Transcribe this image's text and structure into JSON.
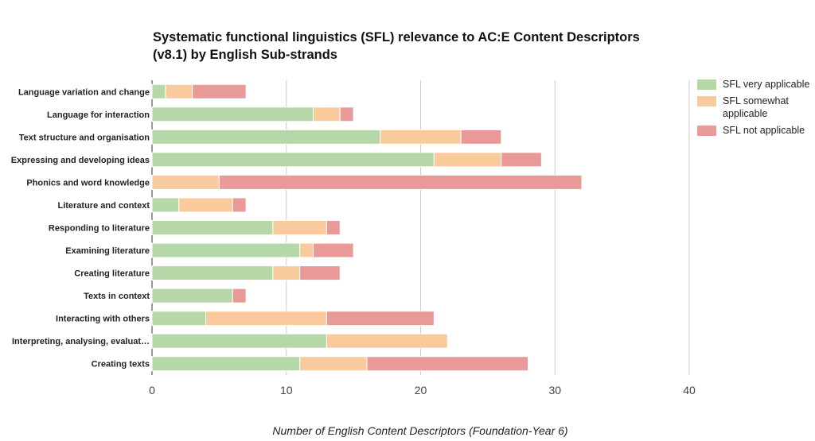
{
  "chart_data": {
    "type": "bar",
    "orientation": "horizontal",
    "stacked": true,
    "title_line1": "Systematic functional linguistics (SFL) relevance to AC:E Content Descriptors",
    "title_line2": "(v8.1) by English Sub-strands",
    "xlabel": "Number of English Content Descriptors (Foundation-Year 6)",
    "ylabel": "",
    "xlim": [
      0,
      40
    ],
    "xticks": [
      0,
      10,
      20,
      30,
      40
    ],
    "grid": true,
    "legend_position": "right",
    "categories": [
      "Language variation and change",
      "Language for interaction",
      "Text structure and organisation",
      "Expressing and developing ideas",
      "Phonics and word knowledge",
      "Literature and context",
      "Responding to literature",
      "Examining literature",
      "Creating literature",
      "Texts in context",
      "Interacting with others",
      "Interpreting, analysing, evaluat…",
      "Creating texts"
    ],
    "series": [
      {
        "name": "SFL very applicable",
        "legend_label": "SFL very applicable",
        "color": "#b6d7a8",
        "values": [
          1,
          12,
          17,
          21,
          0,
          2,
          9,
          11,
          9,
          6,
          4,
          13,
          11
        ]
      },
      {
        "name": "SFL somewhat applicable",
        "legend_label": "SFL somewhat applicable",
        "color": "#f9cb9c",
        "values": [
          2,
          2,
          6,
          5,
          5,
          4,
          4,
          1,
          2,
          0,
          9,
          9,
          5
        ]
      },
      {
        "name": "SFL not applicable",
        "legend_label": "SFL not applicable",
        "color": "#ea9999",
        "values": [
          4,
          1,
          3,
          3,
          27,
          1,
          1,
          3,
          3,
          1,
          8,
          0,
          12
        ]
      }
    ]
  }
}
